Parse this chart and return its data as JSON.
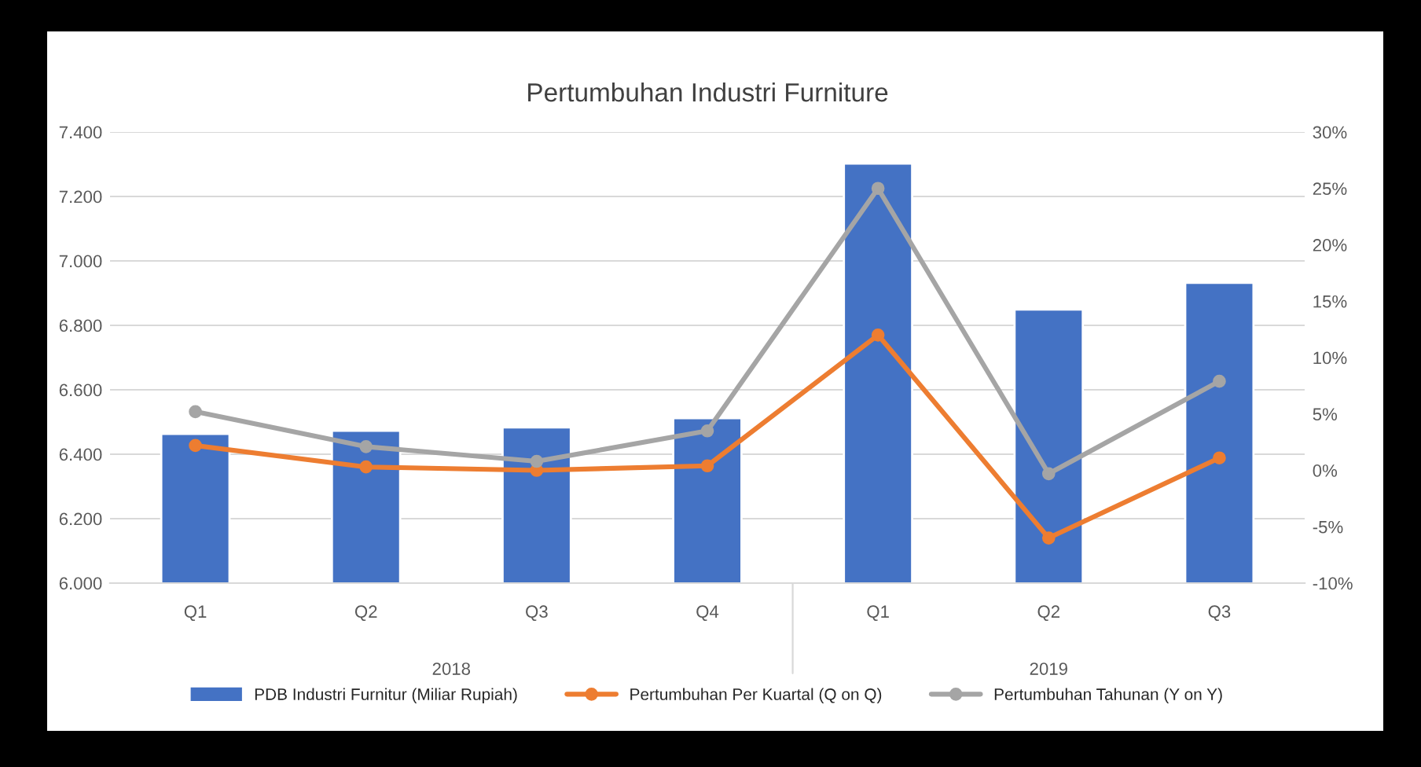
{
  "chart_data": {
    "type": "bar",
    "title": "Pertumbuhan Industri Furniture",
    "categories": [
      "Q1",
      "Q2",
      "Q3",
      "Q4",
      "Q1",
      "Q2",
      "Q3"
    ],
    "series": [
      {
        "name": "PDB Industri Furnitur (Miliar Rupiah)",
        "color": "#4472c4",
        "values": [
          6463,
          6473,
          6483,
          6512,
          7302,
          6849,
          6932
        ]
      },
      {
        "name": "Pertumbuhan Per Kuartal (Q on Q)",
        "type": "line",
        "axis": "y2",
        "color": "#ed7d31",
        "values": [
          2.2,
          0.3,
          0.0,
          0.4,
          12.0,
          -6.0,
          1.1
        ]
      },
      {
        "name": "Pertumbuhan Tahunan (Y on Y)",
        "type": "line",
        "axis": "y2",
        "color": "#a5a5a5",
        "values": [
          5.2,
          2.1,
          0.8,
          3.5,
          25.0,
          -0.3,
          7.9
        ]
      }
    ],
    "ylim": [
      6000,
      7400
    ],
    "yticks": [
      {
        "value": 6000,
        "label": "6.000"
      },
      {
        "value": 6200,
        "label": "6.200"
      },
      {
        "value": 6400,
        "label": "6.400"
      },
      {
        "value": 6600,
        "label": "6.600"
      },
      {
        "value": 6800,
        "label": "6.800"
      },
      {
        "value": 7000,
        "label": "7.000"
      },
      {
        "value": 7200,
        "label": "7.200"
      },
      {
        "value": 7400,
        "label": "7.400"
      }
    ],
    "y2lim": [
      -10,
      30
    ],
    "y2ticks": [
      {
        "value": -10,
        "label": "-10%"
      },
      {
        "value": -5,
        "label": "-5%"
      },
      {
        "value": 0,
        "label": "0%"
      },
      {
        "value": 5,
        "label": "5%"
      },
      {
        "value": 10,
        "label": "10%"
      },
      {
        "value": 15,
        "label": "15%"
      },
      {
        "value": 20,
        "label": "20%"
      },
      {
        "value": 25,
        "label": "25%"
      },
      {
        "value": 30,
        "label": "30%"
      }
    ],
    "annotations": [
      "2018",
      "2019"
    ],
    "grid": "y",
    "legend": "bottom",
    "marker": "circle",
    "line_style": "solid"
  }
}
